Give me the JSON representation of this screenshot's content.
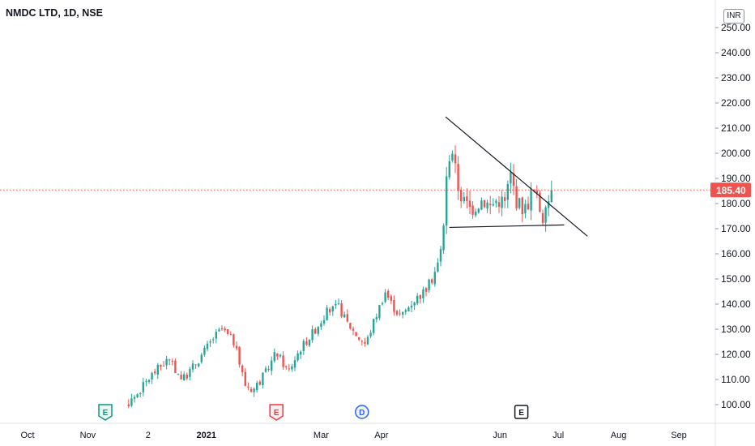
{
  "chart_data": {
    "type": "candlestick",
    "title": "NMDC LTD, 1D, NSE",
    "currency": "INR",
    "last_price": "185.40",
    "last_price_value": 185.4,
    "ylim": [
      95,
      262
    ],
    "y_ticks": [
      {
        "label": "250.00",
        "v": 250
      },
      {
        "label": "240.00",
        "v": 240
      },
      {
        "label": "230.00",
        "v": 230
      },
      {
        "label": "220.00",
        "v": 220
      },
      {
        "label": "210.00",
        "v": 210
      },
      {
        "label": "200.00",
        "v": 200
      },
      {
        "label": "190.00",
        "v": 190
      },
      {
        "label": "180.00",
        "v": 180
      },
      {
        "label": "170.00",
        "v": 170
      },
      {
        "label": "160.00",
        "v": 160
      },
      {
        "label": "150.00",
        "v": 150
      },
      {
        "label": "140.00",
        "v": 140
      },
      {
        "label": "130.00",
        "v": 130
      },
      {
        "label": "120.00",
        "v": 120
      },
      {
        "label": "110.00",
        "v": 110
      },
      {
        "label": "100.00",
        "v": 100
      }
    ],
    "x_ticks": [
      {
        "label": "Oct",
        "day": 0,
        "bold": false
      },
      {
        "label": "Nov",
        "day": 31,
        "bold": false
      },
      {
        "label": "2",
        "day": 62,
        "bold": false
      },
      {
        "label": "2021",
        "day": 92,
        "bold": true
      },
      {
        "label": "Mar",
        "day": 151,
        "bold": false
      },
      {
        "label": "Apr",
        "day": 182,
        "bold": false
      },
      {
        "label": "Jun",
        "day": 243,
        "bold": false
      },
      {
        "label": "Jul",
        "day": 273,
        "bold": false
      },
      {
        "label": "Aug",
        "day": 304,
        "bold": false
      },
      {
        "label": "Sep",
        "day": 335,
        "bold": false
      }
    ],
    "events": [
      {
        "label": "E",
        "day": 40,
        "kind": "earnings-reported"
      },
      {
        "label": "E",
        "day": 128,
        "kind": "earnings-reported-miss"
      },
      {
        "label": "D",
        "day": 172,
        "kind": "dividend"
      },
      {
        "label": "E",
        "day": 254,
        "kind": "earnings-upcoming"
      }
    ],
    "trendlines": [
      {
        "name": "descending-resistance",
        "from": {
          "day": 215,
          "price": 214.5
        },
        "to": {
          "day": 288,
          "price": 167
        }
      },
      {
        "name": "horizontal-support",
        "from": {
          "day": 217,
          "price": 170.5
        },
        "to": {
          "day": 276,
          "price": 171.5
        }
      }
    ],
    "candle_anchors": [
      [
        40,
        95
      ],
      [
        48,
        98
      ],
      [
        56,
        104
      ],
      [
        64,
        112
      ],
      [
        72,
        118
      ],
      [
        80,
        110
      ],
      [
        88,
        118
      ],
      [
        96,
        127
      ],
      [
        100,
        130
      ],
      [
        106,
        125
      ],
      [
        112,
        108
      ],
      [
        116,
        106
      ],
      [
        122,
        112
      ],
      [
        128,
        121
      ],
      [
        134,
        113
      ],
      [
        140,
        122
      ],
      [
        148,
        130
      ],
      [
        154,
        137
      ],
      [
        160,
        139
      ],
      [
        164,
        133
      ],
      [
        170,
        127
      ],
      [
        174,
        124
      ],
      [
        178,
        133
      ],
      [
        184,
        145
      ],
      [
        188,
        139
      ],
      [
        192,
        135
      ],
      [
        198,
        141
      ],
      [
        204,
        145
      ],
      [
        208,
        150
      ],
      [
        212,
        158
      ],
      [
        214,
        172
      ],
      [
        216,
        195
      ],
      [
        218,
        204
      ],
      [
        221,
        188
      ],
      [
        224,
        181
      ],
      [
        228,
        178
      ],
      [
        234,
        182
      ],
      [
        238,
        179
      ],
      [
        242,
        182
      ],
      [
        246,
        180
      ],
      [
        248,
        193
      ],
      [
        252,
        180
      ],
      [
        256,
        178
      ],
      [
        260,
        186
      ],
      [
        264,
        177
      ],
      [
        266,
        173
      ],
      [
        268,
        182
      ],
      [
        270,
        185.4
      ]
    ]
  }
}
